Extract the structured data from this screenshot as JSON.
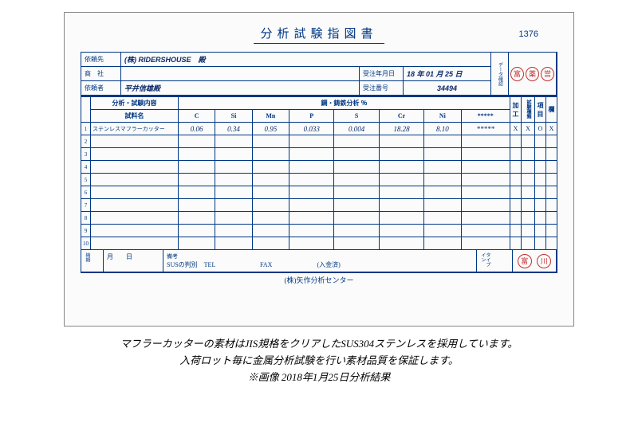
{
  "doc": {
    "number": "1376",
    "title": "分析試験指図書",
    "header": {
      "client_lbl": "依頼先",
      "client": "(株) RIDERSHOUSE　殿",
      "company_lbl": "商　社",
      "company": "",
      "date_lbl": "受注年月日",
      "date": "18 年 01 月 25 日",
      "requester_lbl": "依頼者",
      "requester": "平井信雄殿",
      "recno_lbl": "受注番号",
      "recno": "34494",
      "data_lbl": "データ確認"
    },
    "table": {
      "analysis_header": "分析・試験内容",
      "steel_header": "鋼・鋳鉄分析 ％",
      "sample_lbl": "試料名",
      "cols": [
        "C",
        "Si",
        "Mn",
        "P",
        "S",
        "Cr",
        "Ni",
        "*****"
      ],
      "right_cols": [
        "加工",
        "試験種類",
        "項目",
        "欄"
      ],
      "row1": {
        "name": "ステンレスマフラーカッター",
        "vals": [
          "0.06",
          "0.34",
          "0.95",
          "0.033",
          "0.004",
          "18.28",
          "8.10",
          "*****"
        ],
        "right": [
          "X",
          "X",
          "O",
          "X"
        ]
      },
      "row_count": 10
    },
    "footer": {
      "due_lbl": "納期",
      "due": "月　　日",
      "remarks_lbl": "備考",
      "remarks": "SUSの判別　TEL　　　　　　　FAX　　　　　　　(入金済)",
      "tie_lbl": "タイプイン"
    },
    "center": "(株)矢作分析センター"
  },
  "caption": {
    "l1": "マフラーカッターの素材はJIS規格をクリアしたSUS304ステンレスを採用しています。",
    "l2": "入荷ロット毎に金属分析試験を行い素材品質を保証します。",
    "l3": "※画像 2018年1月25日分析結果"
  },
  "colors": {
    "ink": "#003785",
    "stamp": "#c03030",
    "hand": "#0a2a6b"
  }
}
